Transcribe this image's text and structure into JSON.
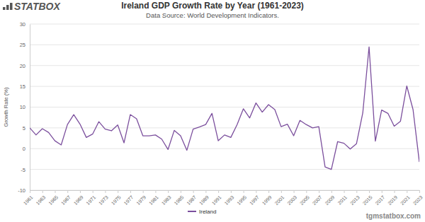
{
  "chart_data": {
    "type": "line",
    "title": "Ireland GDP Growth Rate by Year (1961-2023)",
    "subtitle": "Data Source: World Development Indicators.",
    "y_label": "Growth Rate (%)",
    "annotations": [
      "STATBOX",
      "tgmstatbox.com"
    ],
    "x": [
      1961,
      1962,
      1963,
      1964,
      1965,
      1966,
      1967,
      1968,
      1969,
      1970,
      1971,
      1972,
      1973,
      1974,
      1975,
      1976,
      1977,
      1978,
      1979,
      1980,
      1981,
      1982,
      1983,
      1984,
      1985,
      1986,
      1987,
      1988,
      1989,
      1990,
      1991,
      1992,
      1993,
      1994,
      1995,
      1996,
      1997,
      1998,
      1999,
      2000,
      2001,
      2002,
      2003,
      2004,
      2005,
      2006,
      2007,
      2008,
      2009,
      2010,
      2011,
      2012,
      2013,
      2014,
      2015,
      2016,
      2017,
      2018,
      2019,
      2020,
      2021,
      2022,
      2023
    ],
    "series": [
      {
        "name": "Ireland",
        "color": "#7b4f9d",
        "values": [
          5.0,
          3.3,
          4.8,
          3.9,
          1.9,
          0.9,
          5.8,
          8.2,
          5.9,
          2.7,
          3.5,
          6.5,
          4.7,
          4.3,
          5.7,
          1.4,
          8.2,
          7.2,
          3.1,
          3.1,
          3.3,
          2.3,
          -0.2,
          4.4,
          3.1,
          -0.4,
          4.7,
          5.2,
          5.8,
          8.5,
          1.9,
          3.3,
          2.7,
          5.8,
          9.6,
          7.4,
          11.0,
          8.8,
          10.6,
          9.4,
          5.3,
          5.9,
          3.1,
          6.8,
          5.8,
          5.0,
          5.3,
          -4.4,
          -5.0,
          1.7,
          1.3,
          -0.1,
          1.2,
          8.6,
          24.5,
          1.8,
          9.3,
          8.5,
          5.4,
          6.6,
          15.1,
          9.4,
          -3.2
        ]
      }
    ],
    "xlim": [
      1961,
      2023
    ],
    "xticks": [
      1961,
      1963,
      1965,
      1967,
      1969,
      1971,
      1973,
      1975,
      1977,
      1979,
      1981,
      1983,
      1985,
      1987,
      1989,
      1991,
      1993,
      1995,
      1997,
      1999,
      2001,
      2003,
      2005,
      2007,
      2009,
      2011,
      2013,
      2015,
      2017,
      2019,
      2021,
      2023
    ],
    "ylim": [
      -10,
      30
    ],
    "yticks": [
      -10,
      -5,
      0,
      5,
      10,
      15,
      20,
      25,
      30
    ],
    "grid": true,
    "legend": "bottom"
  }
}
